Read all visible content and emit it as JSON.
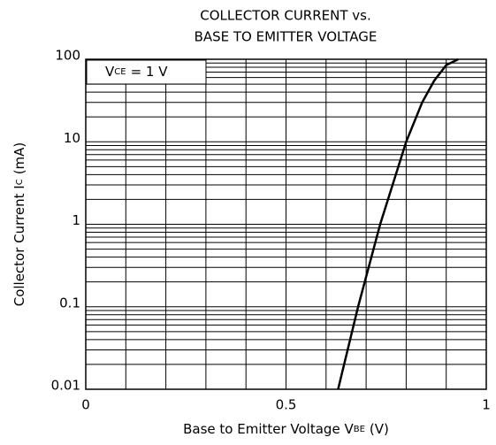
{
  "chart_data": {
    "type": "line",
    "title": [
      "COLLECTOR CURRENT vs.",
      "BASE TO EMITTER VOLTAGE"
    ],
    "xlabel": {
      "text": "Base to Emitter Voltage V",
      "sub": "BE",
      "after": "(V)"
    },
    "ylabel": {
      "text": "Collector Current I",
      "sub": "C",
      "after": "(mA)"
    },
    "annotation": {
      "text": "V",
      "sub": "CE",
      "after": "= 1 V"
    },
    "x": [
      0.63,
      0.68,
      0.735,
      0.8,
      0.84,
      0.87,
      0.9,
      0.93
    ],
    "values": [
      0.01,
      0.1,
      1,
      10,
      30,
      55,
      85,
      100
    ],
    "color": "#000000",
    "xlim": [
      0,
      1
    ],
    "xticks": [
      0,
      0.5,
      1
    ],
    "minor_xticks": [
      0.1,
      0.2,
      0.3,
      0.4,
      0.6,
      0.7,
      0.8,
      0.9
    ],
    "ylim": [
      0.01,
      100
    ],
    "yticks": [
      100,
      10,
      1,
      0.1,
      0.01
    ],
    "yscale": "log",
    "grid": true
  }
}
